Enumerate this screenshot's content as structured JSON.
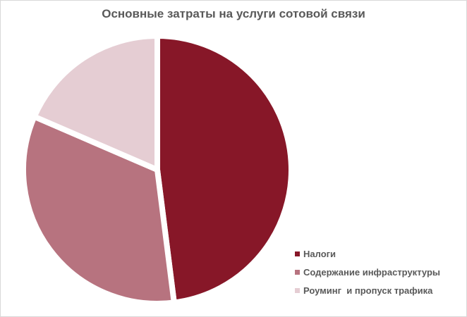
{
  "window": {
    "background": "#FFFFFF",
    "border_color": "#D9D9D9",
    "text_color": "#595959"
  },
  "chart_data": {
    "type": "pie",
    "title": "Основные затраты на услуги сотовой связи",
    "title_color": "#595959",
    "start_angle_deg": 0,
    "direction": "clockwise",
    "separator_color": "#FFFFFF",
    "legend_position": "bottom-right",
    "slices": [
      {
        "label": "Налоги",
        "value": 48,
        "color": "#871728"
      },
      {
        "label": "Содержание инфраструктуры",
        "value": 33.5,
        "color": "#B7737F"
      },
      {
        "label": "Роуминг  и пропуск трафика",
        "value": 18.5,
        "color": "#E5CDD3"
      }
    ]
  }
}
